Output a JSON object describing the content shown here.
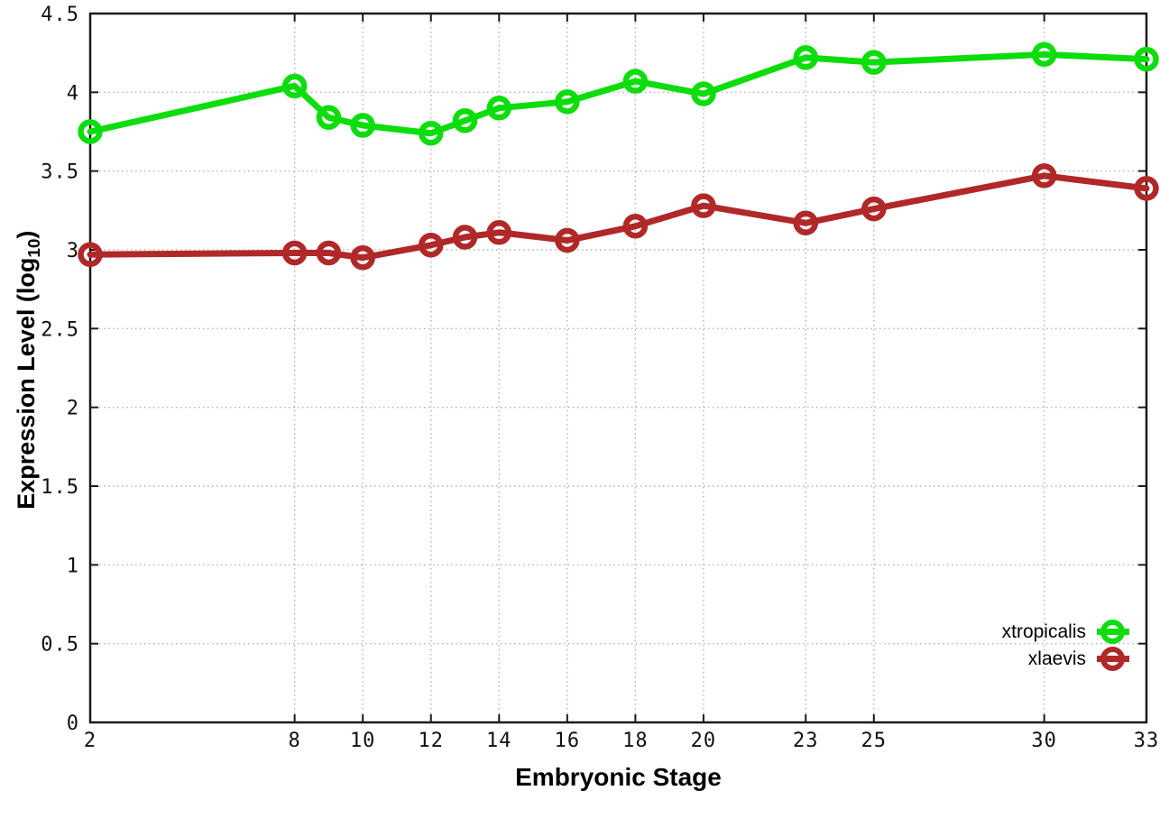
{
  "labels": {
    "xlabel": "Embryonic Stage",
    "ylabel_main": "Expression Level (log",
    "ylabel_sub": "10",
    "ylabel_end": ")"
  },
  "legend": {
    "entries": [
      "xtropicalis",
      "xlaevis"
    ]
  },
  "chart_data": {
    "type": "line",
    "title": "",
    "xlabel": "Embryonic Stage",
    "ylabel": "Expression Level (log10)",
    "x": [
      2,
      8,
      9,
      10,
      12,
      13,
      14,
      16,
      18,
      20,
      23,
      25,
      30,
      33
    ],
    "series": [
      {
        "name": "xtropicalis",
        "color": "#0ddd0d",
        "values": [
          3.75,
          4.04,
          3.84,
          3.79,
          3.74,
          3.82,
          3.9,
          3.94,
          4.07,
          3.99,
          4.22,
          4.19,
          4.24,
          4.21
        ]
      },
      {
        "name": "xlaevis",
        "color": "#b02828",
        "values": [
          2.97,
          2.98,
          2.98,
          2.95,
          3.03,
          3.08,
          3.11,
          3.06,
          3.15,
          3.28,
          3.17,
          3.26,
          3.47,
          3.39
        ]
      }
    ],
    "xlim": [
      2,
      33
    ],
    "ylim": [
      0,
      4.5
    ],
    "x_tick_labels": [
      2,
      8,
      10,
      12,
      14,
      16,
      18,
      20,
      23,
      25,
      30,
      33
    ],
    "y_ticks": [
      0,
      0.5,
      1,
      1.5,
      2,
      2.5,
      3,
      3.5,
      4,
      4.5
    ],
    "grid": true,
    "legend_position": "bottom-right",
    "marker": "open-circle",
    "background_color": "#ffffff",
    "axis_color": "#1a1a1a",
    "grid_color": "#b3b3b3"
  }
}
